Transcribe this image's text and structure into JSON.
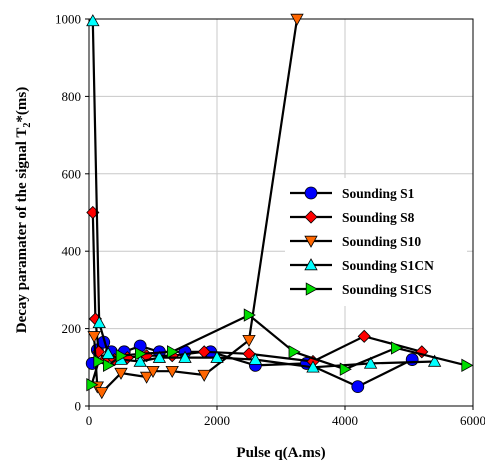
{
  "chart_data": {
    "type": "line",
    "xlabel": "Pulse q(A.ms)",
    "ylabel": "Decay paramater of the signal T",
    "ylabel_sub": "2",
    "ylabel_tail": "*(ms)",
    "xlim": [
      0,
      6000
    ],
    "ylim": [
      0,
      1000
    ],
    "x_ticks": [
      0,
      2000,
      4000,
      6000
    ],
    "y_ticks": [
      0,
      200,
      400,
      600,
      800,
      1000
    ],
    "grid": true,
    "legend_position": "right",
    "series": [
      {
        "name": "Sounding S1",
        "color": "#0000ff",
        "marker": "circle",
        "points": [
          [
            50,
            110
          ],
          [
            130,
            145
          ],
          [
            230,
            165
          ],
          [
            350,
            140
          ],
          [
            550,
            140
          ],
          [
            800,
            155
          ],
          [
            1100,
            140
          ],
          [
            1500,
            140
          ],
          [
            1900,
            140
          ],
          [
            2600,
            105
          ],
          [
            3400,
            110
          ],
          [
            4200,
            50
          ],
          [
            5050,
            120
          ]
        ]
      },
      {
        "name": "Sounding S8",
        "color": "#ff0000",
        "marker": "diamond",
        "points": [
          [
            60,
            500
          ],
          [
            100,
            225
          ],
          [
            150,
            140
          ],
          [
            250,
            120
          ],
          [
            400,
            120
          ],
          [
            600,
            125
          ],
          [
            900,
            130
          ],
          [
            1300,
            130
          ],
          [
            1800,
            140
          ],
          [
            2500,
            135
          ],
          [
            3500,
            115
          ],
          [
            4300,
            180
          ],
          [
            5200,
            140
          ]
        ]
      },
      {
        "name": "Sounding S10",
        "color": "#ff6600",
        "marker": "triangle-down",
        "points": [
          [
            80,
            180
          ],
          [
            130,
            50
          ],
          [
            200,
            35
          ],
          [
            500,
            85
          ],
          [
            900,
            75
          ],
          [
            1000,
            90
          ],
          [
            1300,
            90
          ],
          [
            1800,
            80
          ],
          [
            2500,
            170
          ],
          [
            3250,
            1000
          ]
        ]
      },
      {
        "name": "Sounding S1CN",
        "color": "#00ffff",
        "marker": "triangle-up",
        "points": [
          [
            60,
            995
          ],
          [
            160,
            215
          ],
          [
            300,
            135
          ],
          [
            500,
            120
          ],
          [
            800,
            115
          ],
          [
            1100,
            125
          ],
          [
            1500,
            125
          ],
          [
            2000,
            125
          ],
          [
            2600,
            120
          ],
          [
            3500,
            100
          ],
          [
            4400,
            110
          ],
          [
            5400,
            115
          ]
        ]
      },
      {
        "name": "Sounding S1CS",
        "color": "#00dd00",
        "marker": "triangle-right",
        "points": [
          [
            40,
            55
          ],
          [
            150,
            115
          ],
          [
            300,
            105
          ],
          [
            500,
            130
          ],
          [
            800,
            135
          ],
          [
            1300,
            140
          ],
          [
            2500,
            235
          ],
          [
            3200,
            140
          ],
          [
            4000,
            95
          ],
          [
            4800,
            150
          ],
          [
            5900,
            105
          ]
        ]
      }
    ]
  }
}
